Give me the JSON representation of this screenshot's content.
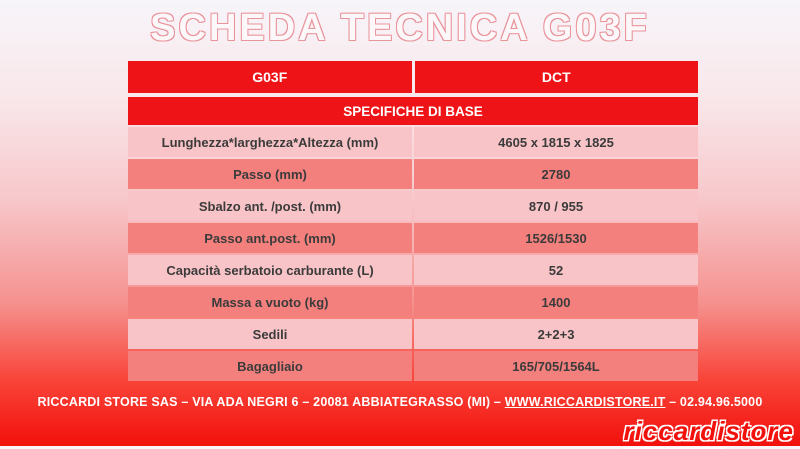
{
  "title": "SCHEDA TECNICA G03F",
  "colors": {
    "header_red": "#ee1316",
    "row_light": "#f8c4c8",
    "row_dark": "#f4807d",
    "text_dark": "#3b3b3b"
  },
  "table": {
    "columns": [
      {
        "label": "G03F"
      },
      {
        "label": "DCT"
      }
    ],
    "section_header": "SPECIFICHE DI BASE",
    "rows": [
      {
        "label": "Lunghezza*larghezza*Altezza (mm)",
        "value": "4605 x 1815 x 1825"
      },
      {
        "label": "Passo (mm)",
        "value": "2780"
      },
      {
        "label": "Sbalzo ant. /post. (mm)",
        "value": "870 / 955"
      },
      {
        "label": "Passo ant.post. (mm)",
        "value": "1526/1530"
      },
      {
        "label": "Capacità serbatoio carburante (L)",
        "value": "52"
      },
      {
        "label": "Massa a vuoto (kg)",
        "value": "1400"
      },
      {
        "label": "Sedili",
        "value": "2+2+3"
      },
      {
        "label": "Bagagliaio",
        "value": "165/705/1564L"
      }
    ]
  },
  "footer": {
    "text_before": "RICCARDI STORE SAS – VIA ADA NEGRI 6 – 20081 ABBIATEGRASSO (MI) – ",
    "link": "WWW.RICCARDISTORE.IT",
    "text_after": " – 02.94.96.5000"
  },
  "logo": {
    "part1": "riccardi",
    "part2": "store"
  }
}
